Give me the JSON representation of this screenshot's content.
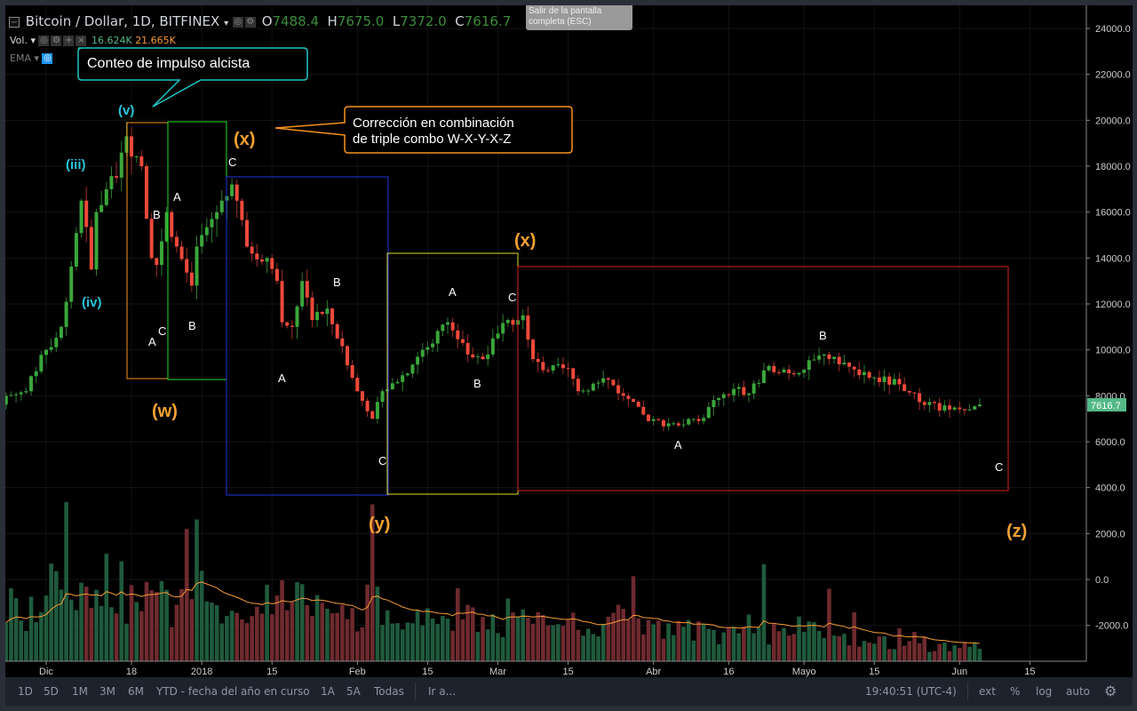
{
  "header": {
    "symbol": "Bitcoin / Dollar, 1D, BITFINEX",
    "ohlc": {
      "o_label": "O",
      "o": "7488.4",
      "h_label": "H",
      "h": "7675.0",
      "l_label": "L",
      "l": "7372.0",
      "c_label": "C",
      "c": "7616.7"
    },
    "vol_label": "Vol.",
    "vol_values": [
      "16.624K",
      "21.665K"
    ],
    "ema_label": "EMA",
    "tooltip": "Salir de la pantalla completa (ESC)"
  },
  "annotations": {
    "callout_impulse": "Conteo de impulso alcista",
    "callout_correction_1": "Corrección en combinación",
    "callout_correction_2": "de triple combo W-X-Y-X-Z",
    "waves": [
      "(iii)",
      "(iv)",
      "(v)"
    ],
    "big_labels": [
      "(w)",
      "(x)",
      "(y)",
      "(x)",
      "(z)"
    ],
    "abc": [
      "A",
      "B",
      "C"
    ]
  },
  "bottombar": {
    "ranges": [
      "1D",
      "5D",
      "1M",
      "3M",
      "6M",
      "YTD - fecha del año en curso",
      "1A",
      "5A",
      "Todas"
    ],
    "goto": "Ir a...",
    "clock": "19:40:51 (UTC-4)",
    "options": [
      "ext",
      "%",
      "log",
      "auto"
    ]
  },
  "colors": {
    "up": "#3aa63a",
    "down": "#f0493a",
    "ema": "#f79b36",
    "price_tag": "#53b987"
  },
  "chart_data": {
    "type": "candlestick",
    "title": "Bitcoin / Dollar, 1D, BITFINEX",
    "x_ticks": [
      {
        "label": "Dic",
        "day": 0
      },
      {
        "label": "18",
        "day": 17
      },
      {
        "label": "2018",
        "day": 31
      },
      {
        "label": "15",
        "day": 45
      },
      {
        "label": "Feb",
        "day": 62
      },
      {
        "label": "15",
        "day": 76
      },
      {
        "label": "Mar",
        "day": 90
      },
      {
        "label": "15",
        "day": 104
      },
      {
        "label": "Abr",
        "day": 121
      },
      {
        "label": "16",
        "day": 136
      },
      {
        "label": "Mayo",
        "day": 151
      },
      {
        "label": "15",
        "day": 165
      },
      {
        "label": "Jun",
        "day": 182
      },
      {
        "label": "15",
        "day": 196
      }
    ],
    "y_ticks": [
      "24000.0",
      "22000.0",
      "20000.0",
      "18000.0",
      "16000.0",
      "14000.0",
      "12000.0",
      "10000.0",
      "8000.0",
      "6000.0",
      "4000.0",
      "2000.0",
      "0.0",
      "-2000.0"
    ],
    "y_values": [
      24000,
      22000,
      20000,
      18000,
      16000,
      14000,
      12000,
      10000,
      8000,
      6000,
      4000,
      2000,
      0,
      -2000
    ],
    "ylim": [
      -3400,
      25000
    ],
    "last_price": "7616.7",
    "close_keypoints_day_price": [
      [
        -8,
        8000
      ],
      [
        -4,
        8200
      ],
      [
        0,
        10000
      ],
      [
        3,
        11000
      ],
      [
        7,
        16500
      ],
      [
        9,
        13500
      ],
      [
        10,
        16000
      ],
      [
        12,
        17000
      ],
      [
        14,
        17500
      ],
      [
        16,
        19300
      ],
      [
        19,
        18000
      ],
      [
        21,
        14000
      ],
      [
        22,
        13700
      ],
      [
        24,
        16000
      ],
      [
        26,
        14500
      ],
      [
        29,
        12800
      ],
      [
        30,
        14500
      ],
      [
        35,
        16500
      ],
      [
        37,
        17200
      ],
      [
        40,
        14500
      ],
      [
        44,
        14000
      ],
      [
        46,
        13000
      ],
      [
        47,
        11200
      ],
      [
        49,
        11000
      ],
      [
        51,
        13000
      ],
      [
        53,
        11300
      ],
      [
        56,
        11800
      ],
      [
        58,
        10500
      ],
      [
        62,
        8200
      ],
      [
        65,
        7000
      ],
      [
        67,
        8200
      ],
      [
        70,
        8600
      ],
      [
        75,
        10000
      ],
      [
        80,
        11200
      ],
      [
        84,
        9800
      ],
      [
        87,
        9600
      ],
      [
        89,
        10500
      ],
      [
        92,
        11300
      ],
      [
        95,
        11500
      ],
      [
        97,
        9600
      ],
      [
        100,
        9100
      ],
      [
        104,
        9200
      ],
      [
        106,
        8200
      ],
      [
        112,
        8700
      ],
      [
        115,
        8000
      ],
      [
        120,
        6900
      ],
      [
        125,
        6800
      ],
      [
        130,
        6900
      ],
      [
        134,
        7900
      ],
      [
        137,
        8300
      ],
      [
        140,
        8100
      ],
      [
        144,
        9300
      ],
      [
        150,
        9000
      ],
      [
        155,
        9800
      ],
      [
        157,
        9700
      ],
      [
        162,
        8900
      ],
      [
        170,
        8500
      ],
      [
        175,
        7600
      ],
      [
        180,
        7400
      ],
      [
        184,
        7400
      ],
      [
        186,
        7616.7
      ]
    ],
    "volume_k_every_4_days": [
      45,
      38,
      60,
      52,
      50,
      62,
      48,
      58,
      44,
      50,
      40,
      36,
      42,
      48,
      58,
      52,
      44,
      40,
      45,
      38,
      36,
      44,
      40,
      35,
      32,
      36,
      30,
      34,
      28,
      30,
      35,
      28,
      26,
      30,
      24,
      22,
      24,
      28,
      22,
      20,
      24,
      20,
      18,
      16,
      16,
      14,
      12
    ]
  }
}
